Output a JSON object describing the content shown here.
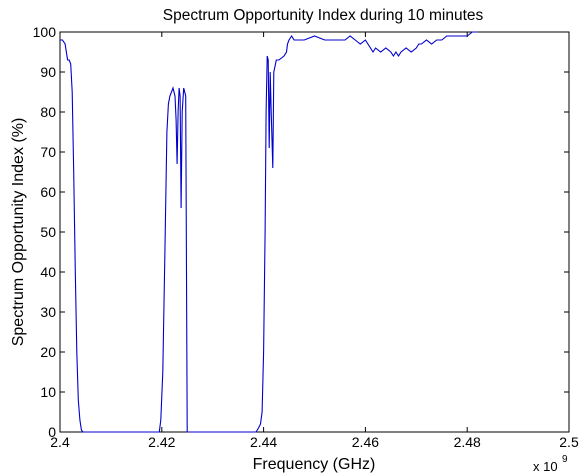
{
  "chart_data": {
    "type": "line",
    "title": "Spectrum Opportunity Index during 10 minutes",
    "xlabel": "Frequency (GHz)",
    "ylabel": "Spectrum Opportunity Index (%)",
    "x_exponent": {
      "base": "x 10",
      "power": "9"
    },
    "xlim": [
      2.4,
      2.5
    ],
    "ylim": [
      0,
      100
    ],
    "x_ticks": [
      2.4,
      2.42,
      2.44,
      2.46,
      2.48,
      2.5
    ],
    "x_tick_labels": [
      "2.4",
      "2.42",
      "2.44",
      "2.46",
      "2.48",
      "2.5"
    ],
    "y_ticks": [
      0,
      10,
      20,
      30,
      40,
      50,
      60,
      70,
      80,
      90,
      100
    ],
    "y_tick_labels": [
      "0",
      "10",
      "20",
      "30",
      "40",
      "50",
      "60",
      "70",
      "80",
      "90",
      "100"
    ],
    "grid": false,
    "line_color": "#0000cc",
    "series": [
      {
        "x": [
          2.4,
          2.4005,
          2.401,
          2.4015,
          2.4018,
          2.4021,
          2.4024,
          2.4027,
          2.403,
          2.4033,
          2.4036,
          2.4039,
          2.4042,
          2.4045,
          2.405,
          2.41,
          2.415,
          2.4195,
          2.4198,
          2.4202,
          2.4206,
          2.421,
          2.4213,
          2.4216,
          2.4219,
          2.4222,
          2.4224,
          2.4226,
          2.4228,
          2.423,
          2.4232,
          2.4234,
          2.4236,
          2.4238,
          2.424,
          2.4243,
          2.4245,
          2.4247,
          2.425,
          2.43,
          2.435,
          2.4385,
          2.439,
          2.4394,
          2.4397,
          2.44,
          2.4403,
          2.4405,
          2.4407,
          2.4409,
          2.4411,
          2.4413,
          2.4415,
          2.4418,
          2.442,
          2.4425,
          2.443,
          2.444,
          2.4445,
          2.4447,
          2.445,
          2.4455,
          2.446,
          2.448,
          2.45,
          2.452,
          2.454,
          2.456,
          2.457,
          2.458,
          2.459,
          2.46,
          2.4605,
          2.461,
          2.4615,
          2.462,
          2.463,
          2.464,
          2.465,
          2.4655,
          2.466,
          2.4665,
          2.467,
          2.468,
          2.469,
          2.47,
          2.4705,
          2.471,
          2.472,
          2.473,
          2.474,
          2.475,
          2.476,
          2.478,
          2.48,
          2.481,
          2.482
        ],
        "y": [
          98,
          98,
          97,
          93,
          93,
          92,
          85,
          65,
          40,
          20,
          8,
          3,
          0.5,
          0,
          0,
          0,
          0,
          0,
          3,
          15,
          45,
          75,
          82,
          84,
          85,
          86,
          85,
          84,
          78,
          67,
          80,
          86,
          84,
          56,
          80,
          86,
          85,
          84,
          0,
          0,
          0,
          0,
          1,
          2,
          5,
          20,
          50,
          80,
          94,
          93,
          71,
          90,
          80,
          66,
          90,
          93,
          93,
          94,
          95,
          97,
          98,
          99,
          98,
          98,
          99,
          98,
          98,
          98,
          99,
          98,
          97,
          98,
          97,
          96,
          95,
          96,
          95,
          96,
          95,
          94,
          95,
          94,
          95,
          96,
          95,
          96,
          97,
          97,
          98,
          97,
          98,
          98,
          99,
          99,
          99,
          100,
          100
        ]
      }
    ]
  }
}
